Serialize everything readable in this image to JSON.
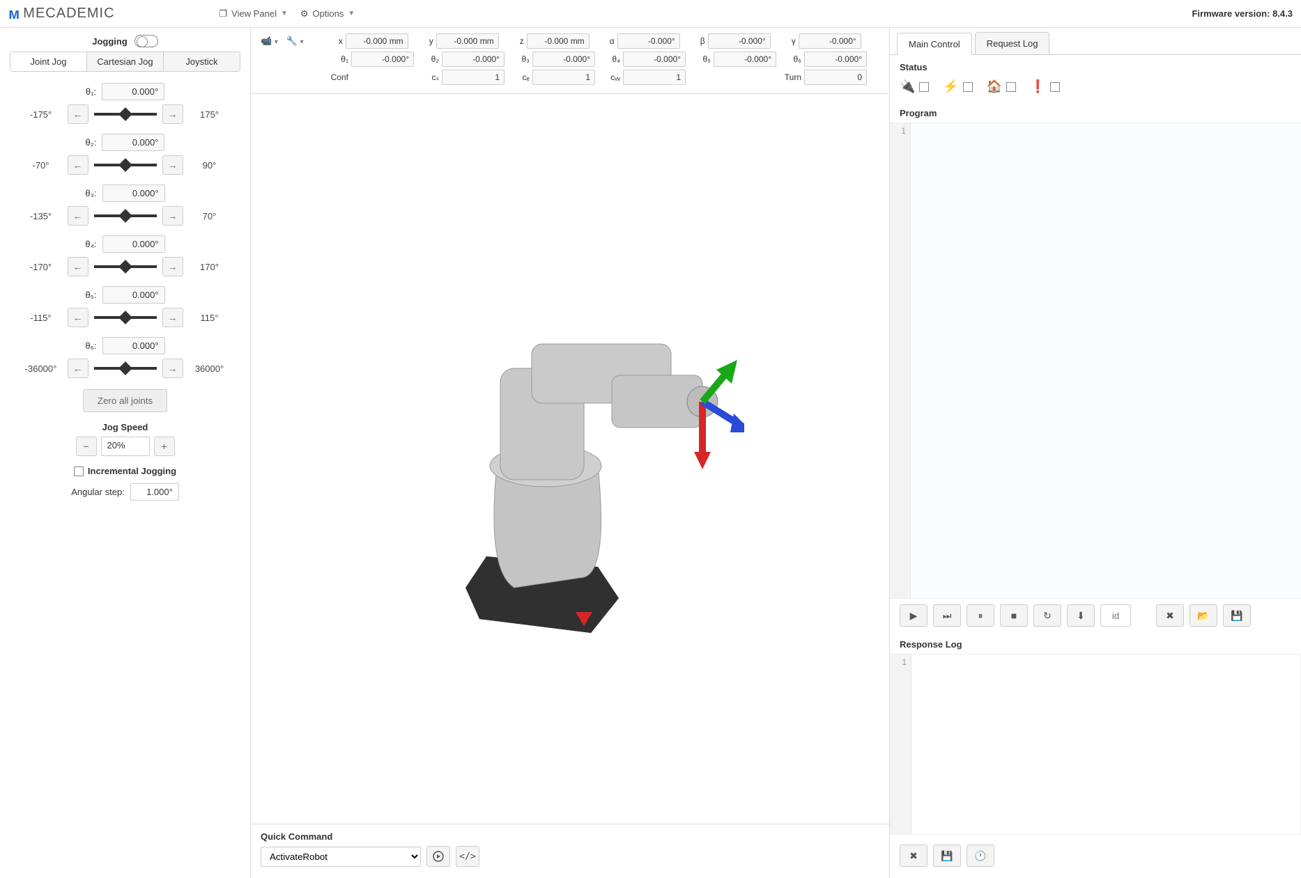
{
  "topbar": {
    "brand_prefix": "M",
    "brand": "MECADEMIC",
    "view_panel": "View Panel",
    "options": "Options",
    "firmware_label": "Firmware version: ",
    "firmware_value": "8.4.3"
  },
  "jog": {
    "title": "Jogging",
    "tabs": {
      "joint": "Joint Jog",
      "cartesian": "Cartesian Jog",
      "joystick": "Joystick"
    },
    "joints": [
      {
        "label": "θ₁:",
        "value": "0.000°",
        "min": "-175°",
        "max": "175°"
      },
      {
        "label": "θ₂:",
        "value": "0.000°",
        "min": "-70°",
        "max": "90°"
      },
      {
        "label": "θ₃:",
        "value": "0.000°",
        "min": "-135°",
        "max": "70°"
      },
      {
        "label": "θ₄:",
        "value": "0.000°",
        "min": "-170°",
        "max": "170°"
      },
      {
        "label": "θ₅:",
        "value": "0.000°",
        "min": "-115°",
        "max": "115°"
      },
      {
        "label": "θ₆:",
        "value": "0.000°",
        "min": "-36000°",
        "max": "36000°"
      }
    ],
    "zero": "Zero all joints",
    "jog_speed_title": "Jog Speed",
    "jog_speed_value": "20%",
    "incremental_label": "Incremental Jogging",
    "angular_step_label": "Angular step:",
    "angular_step_value": "1.000°"
  },
  "readout": {
    "row1": [
      {
        "label": "x",
        "value": "-0.000 mm"
      },
      {
        "label": "y",
        "value": "-0.000 mm"
      },
      {
        "label": "z",
        "value": "-0.000 mm"
      },
      {
        "label": "α",
        "value": "-0.000°"
      },
      {
        "label": "β",
        "value": "-0.000°"
      },
      {
        "label": "γ",
        "value": "-0.000°"
      }
    ],
    "row2": [
      {
        "label": "θ₁",
        "value": "-0.000°"
      },
      {
        "label": "θ₂",
        "value": "-0.000°"
      },
      {
        "label": "θ₃",
        "value": "-0.000°"
      },
      {
        "label": "θ₄",
        "value": "-0.000°"
      },
      {
        "label": "θ₅",
        "value": "-0.000°"
      },
      {
        "label": "θ₆",
        "value": "-0.000°"
      }
    ],
    "row3": [
      {
        "label": "Conf",
        "value": ""
      },
      {
        "label": "cₛ",
        "value": "1"
      },
      {
        "label": "cₑ",
        "value": "1"
      },
      {
        "label": "cᵥᵥ",
        "value": "1"
      },
      {
        "label": "",
        "value": ""
      },
      {
        "label": "Turn",
        "value": "0"
      }
    ]
  },
  "quick_command": {
    "title": "Quick Command",
    "selected": "ActivateRobot"
  },
  "right": {
    "tabs": {
      "main": "Main Control",
      "request": "Request Log"
    },
    "status_title": "Status",
    "program_title": "Program",
    "program_line": "1",
    "id_placeholder": "id",
    "response_title": "Response Log",
    "response_line": "1"
  },
  "colors": {
    "border": "#cccccc",
    "panel_bg": "#f5f5f5",
    "axis_x": "#d82626",
    "axis_y": "#18a818",
    "axis_z": "#2a4ad8"
  }
}
